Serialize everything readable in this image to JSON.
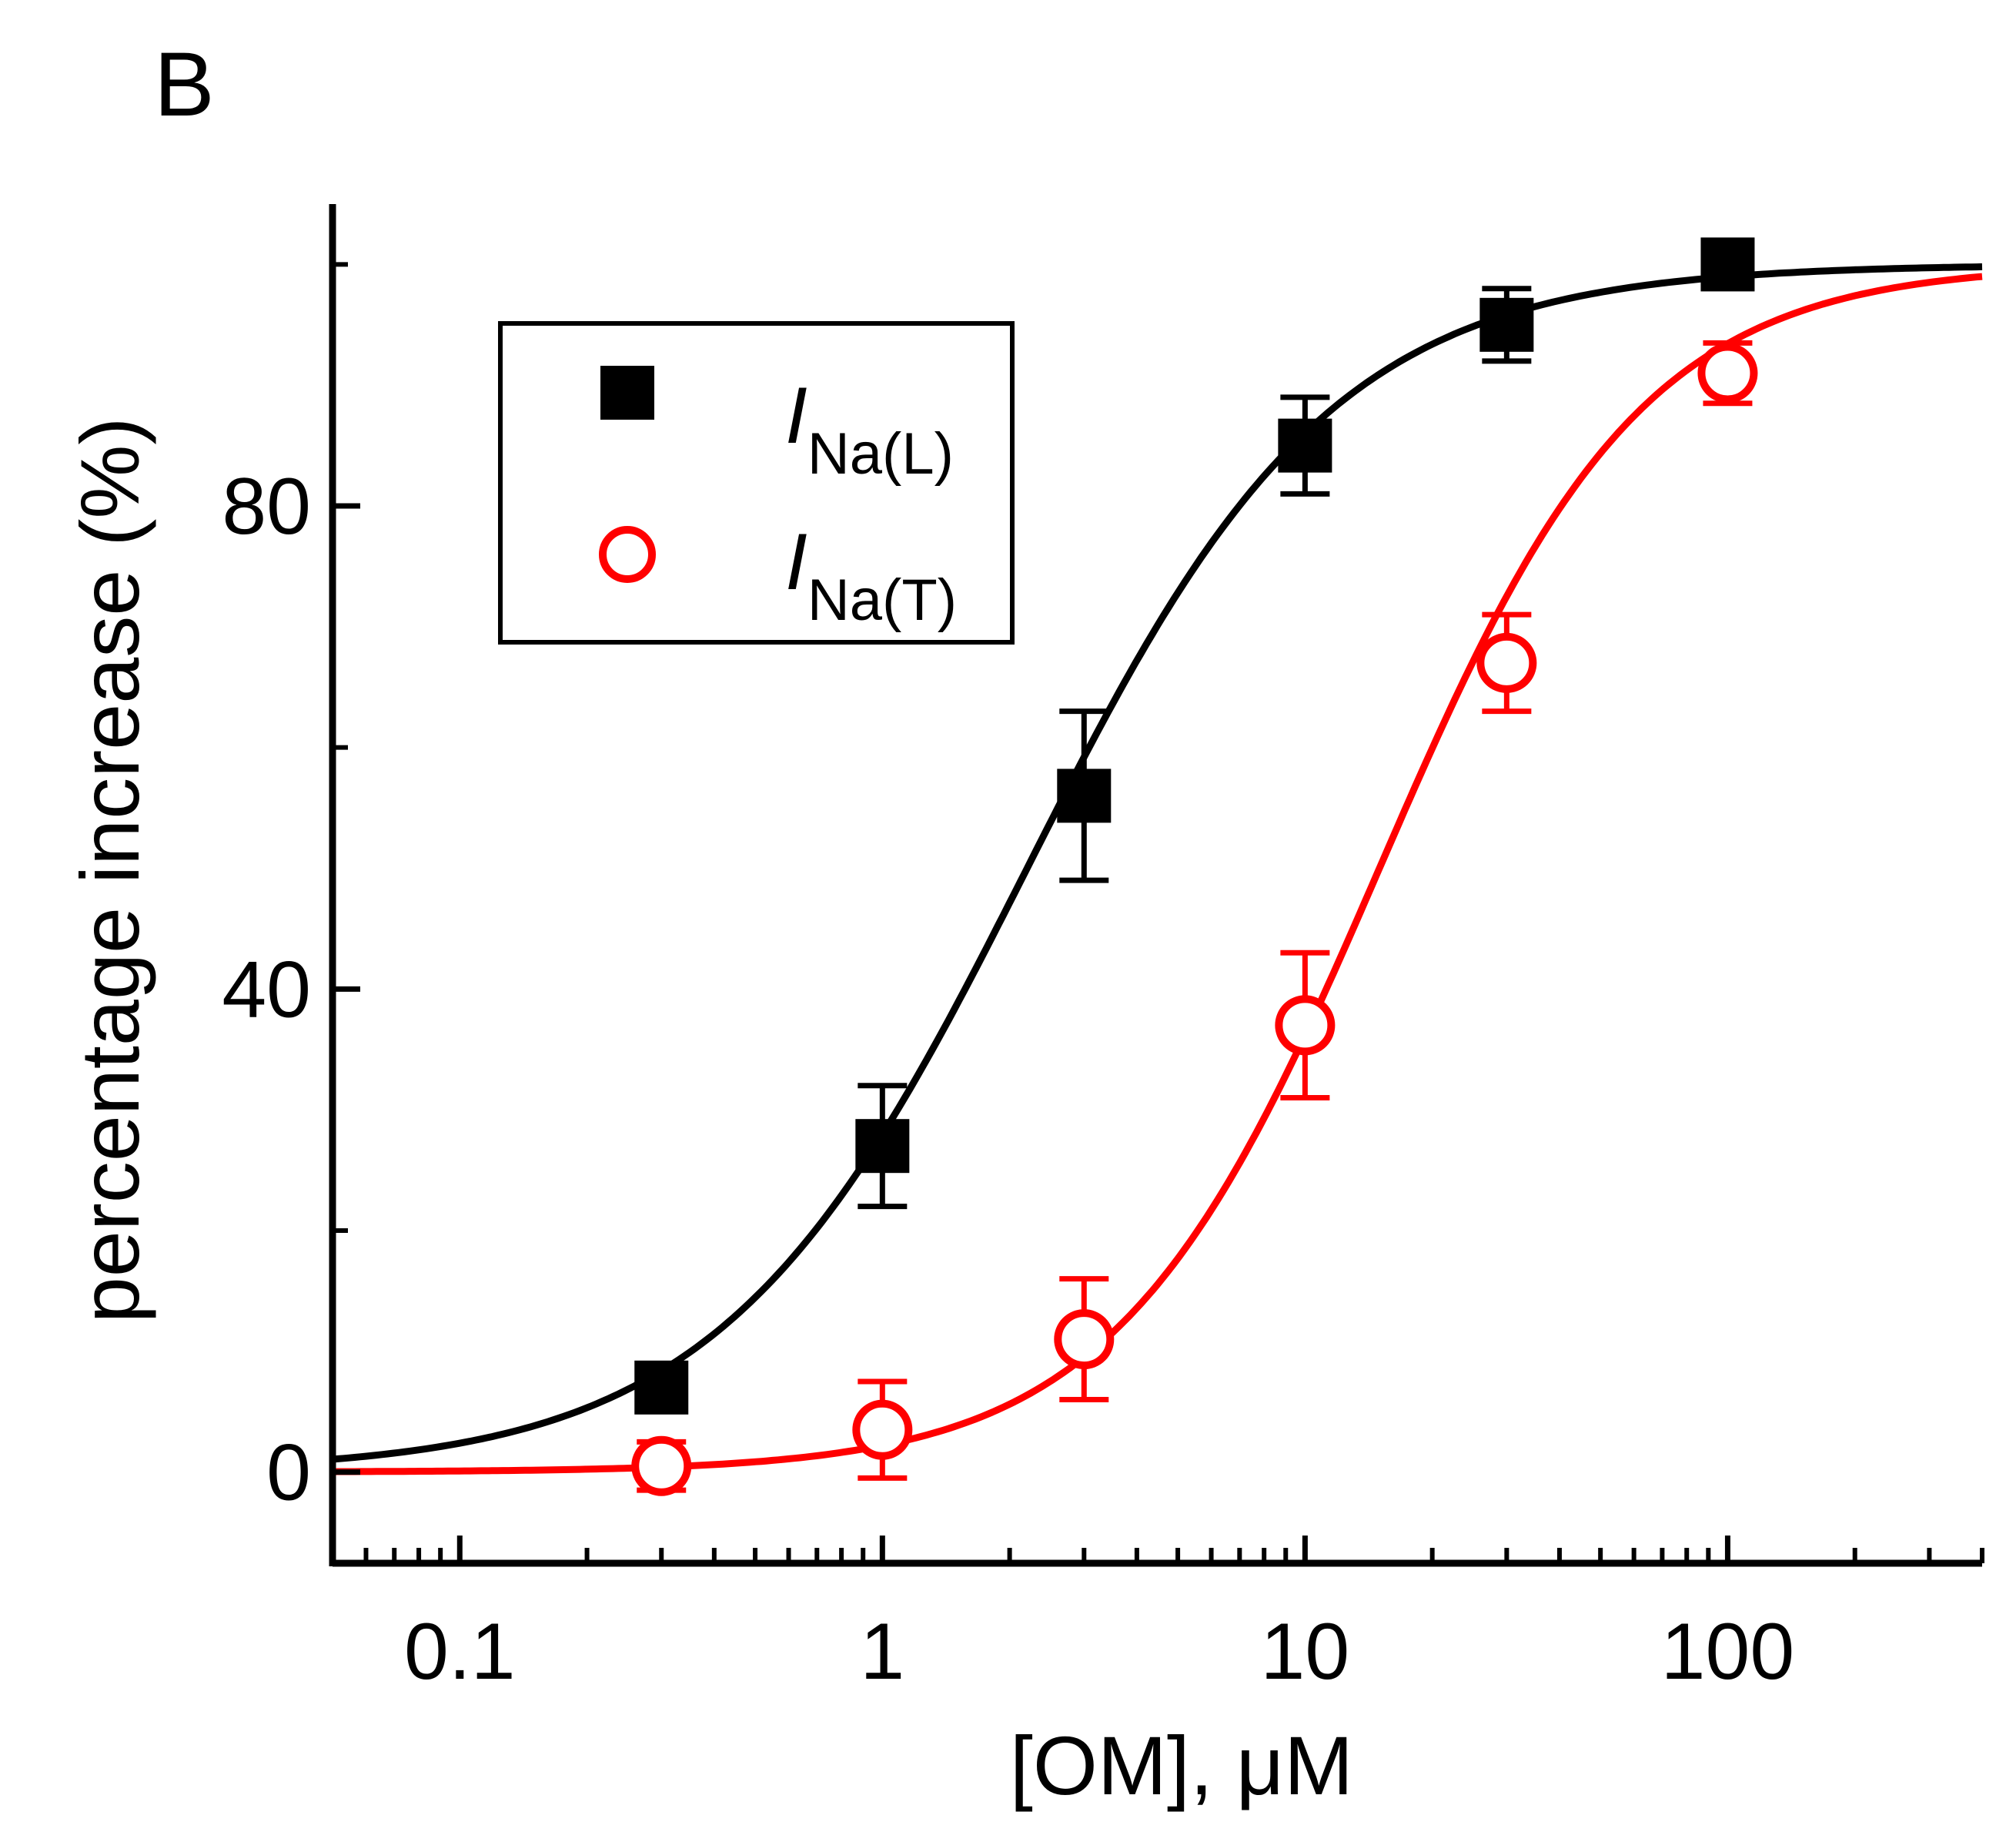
{
  "panel_label": "B",
  "chart_data": {
    "type": "scatter",
    "title": "",
    "xlabel": "[OM], μM",
    "ylabel": "percentage increase (%)",
    "xscale": "log",
    "xlim": [
      0.05,
      400
    ],
    "ylim": [
      -5,
      105
    ],
    "x_ticks": [
      0.1,
      1,
      10,
      100
    ],
    "x_tick_labels": [
      "0.1",
      "1",
      "10",
      "100"
    ],
    "y_ticks": [
      0,
      40,
      80
    ],
    "y_tick_labels": [
      "0",
      "40",
      "80"
    ],
    "legend_position": "top-left",
    "series": [
      {
        "name": "I_Na(L)",
        "legend_main": "I",
        "legend_sub": "Na(L)",
        "marker": "filled-square",
        "color": "#000000",
        "x": [
          0.3,
          1,
          3,
          10,
          30,
          100
        ],
        "y": [
          7,
          27,
          56,
          85,
          95,
          100
        ],
        "yerr": [
          1.5,
          5,
          7,
          4,
          3,
          1
        ],
        "fit": {
          "model": "hill",
          "max": 100,
          "ec50": 2.2,
          "n": 1.2
        }
      },
      {
        "name": "I_Na(T)",
        "legend_main": "I",
        "legend_sub": "Na(T)",
        "marker": "open-circle",
        "color": "#ff0000",
        "x": [
          0.3,
          1,
          3,
          10,
          30,
          100
        ],
        "y": [
          0.5,
          3.5,
          11,
          37,
          67,
          91
        ],
        "yerr": [
          2,
          4,
          5,
          6,
          4,
          2.5
        ],
        "fit": {
          "model": "hill",
          "max": 100,
          "ec50": 15,
          "n": 1.4
        }
      }
    ]
  }
}
